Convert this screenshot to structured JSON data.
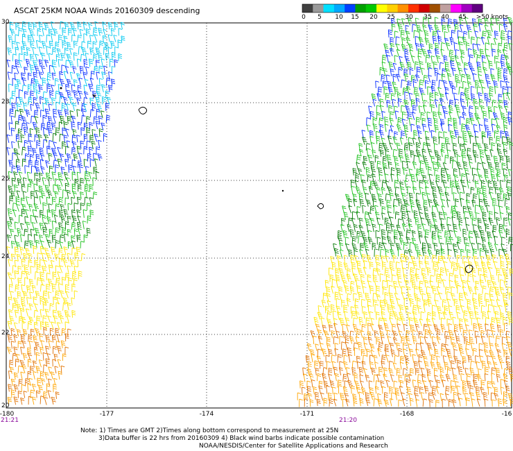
{
  "title": "ASCAT 25KM NOAA Winds 20160309 descending",
  "colorbar": {
    "labels": [
      "0",
      "5",
      "10",
      "15",
      "20",
      "25",
      "30",
      "35",
      "40",
      "45",
      ">50 knots"
    ],
    "colors": [
      "#404040",
      "#9a9a9a",
      "#00e0ff",
      "#00a8ff",
      "#0040ff",
      "#00a000",
      "#00c800",
      "#ffff00",
      "#ffd000",
      "#ff9000",
      "#ff3000",
      "#d00000",
      "#a05000",
      "#c0a0a0",
      "#ff00ff",
      "#a000c0",
      "#600080"
    ]
  },
  "axes": {
    "lat_labels": [
      "30",
      "28",
      "26",
      "24",
      "22",
      "20"
    ],
    "lon_labels": [
      "-180",
      "-177",
      "-174",
      "-171",
      "-168",
      "-16"
    ]
  },
  "time_labels": [
    "21:21",
    "21:20"
  ],
  "notes": {
    "line1": "Note: 1) Times are GMT 2)Times along bottom correspond to measurement at 25N",
    "line2": "3)Data buffer is 22 hrs from 20160309 4) Black wind barbs indicate possible contamination",
    "line3": "NOAA/NESDIS/Center for Satellite Applications and Research"
  },
  "legend_colors": {
    "light_blue": "#00c8f0",
    "blue": "#0028ff",
    "dark_green": "#007800",
    "green": "#18c018",
    "yellow": "#ffe600",
    "orange": "#ffa500",
    "dark_orange": "#e07000",
    "black": "#000000"
  }
}
